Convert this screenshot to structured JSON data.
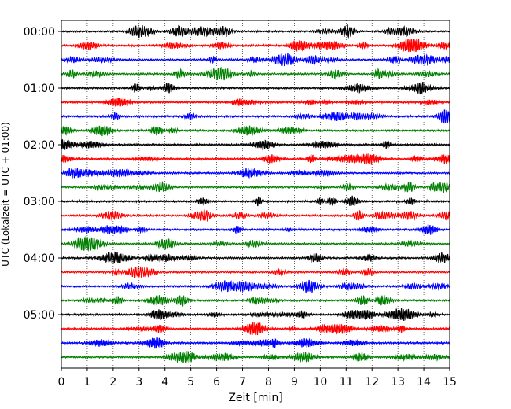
{
  "chart_data": {
    "type": "line",
    "title": "",
    "xlabel": "Zeit  [min]",
    "ylabel": "UTC (Lokalzeit = UTC + 01:00)",
    "xlim": [
      0,
      15
    ],
    "x_ticks": [
      "0",
      "1",
      "2",
      "3",
      "4",
      "5",
      "6",
      "7",
      "8",
      "9",
      "10",
      "11",
      "12",
      "13",
      "14",
      "15"
    ],
    "y_ticks": [
      "00:00",
      "01:00",
      "02:00",
      "03:00",
      "04:00",
      "05:00"
    ],
    "grid": "x-dotted",
    "trace_interval_min": 15,
    "traces_per_hour": 4,
    "trace_count": 24,
    "series_colors": [
      "#000000",
      "#ff0000",
      "#0000ff",
      "#008000"
    ]
  }
}
